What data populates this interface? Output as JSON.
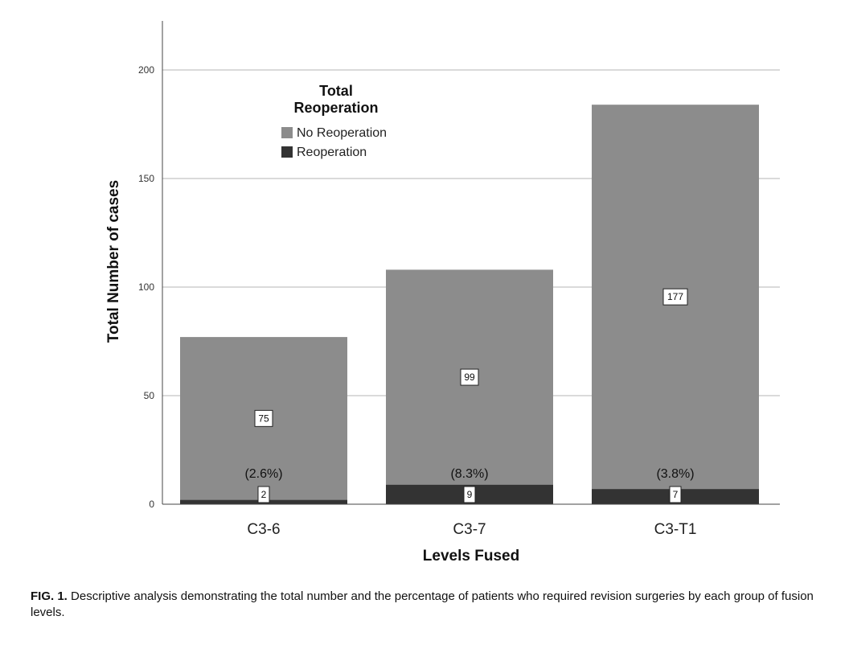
{
  "chart_data": {
    "type": "bar",
    "stacked": true,
    "categories": [
      "C3-6",
      "C3-7",
      "C3-T1"
    ],
    "series": [
      {
        "name": "Reoperation",
        "values": [
          2,
          9,
          7
        ],
        "color": "#333333"
      },
      {
        "name": "No Reoperation",
        "values": [
          75,
          99,
          177
        ],
        "color": "#8c8c8c"
      }
    ],
    "percent_labels": [
      "(2.6%)",
      "(8.3%)",
      "(3.8%)"
    ],
    "legend_title": [
      "Total",
      "Reoperation"
    ],
    "legend_position": "top-left",
    "xlabel": "Levels Fused",
    "ylabel": "Total Number of cases",
    "ylim": [
      0,
      220
    ],
    "yticks": [
      0,
      50,
      100,
      150,
      200
    ],
    "grid": true
  },
  "caption": {
    "label": "FIG. 1.",
    "text": "Descriptive analysis demonstrating the total number and the percentage of patients who required revision surgeries by each group of fusion levels."
  }
}
